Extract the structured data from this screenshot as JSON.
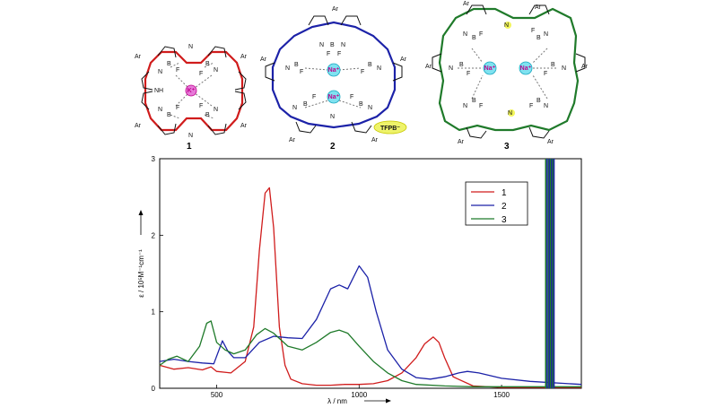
{
  "molecules": [
    {
      "label": "1",
      "color": "#d01c1c",
      "ion": "K⁺",
      "extra": ""
    },
    {
      "label": "2",
      "color": "#1c22a8",
      "ion": "Na⁺",
      "extra": "TFPB⁻"
    },
    {
      "label": "3",
      "color": "#1f7a2a",
      "ion": "Na⁺",
      "extra": ""
    }
  ],
  "atoms": {
    "ar": "Ar",
    "n": "N",
    "b": "B",
    "f": "F",
    "nh": "NH"
  },
  "chart_data": {
    "type": "line",
    "xlabel": "λ / nm",
    "ylabel": "ε / 10⁵M⁻¹cm⁻¹",
    "xlim": [
      300,
      1780
    ],
    "ylim": [
      0,
      3
    ],
    "xticks": [
      500,
      1000,
      1500
    ],
    "yticks": [
      0,
      1,
      2,
      3
    ],
    "legend_position": "top-right",
    "series": [
      {
        "name": "1",
        "color": "#d01c1c",
        "x": [
          300,
          350,
          400,
          450,
          480,
          500,
          550,
          600,
          630,
          650,
          670,
          685,
          700,
          720,
          740,
          760,
          800,
          850,
          900,
          950,
          1000,
          1050,
          1100,
          1150,
          1200,
          1230,
          1260,
          1280,
          1300,
          1330,
          1400,
          1500,
          1780
        ],
        "y": [
          0.3,
          0.25,
          0.27,
          0.24,
          0.28,
          0.22,
          0.2,
          0.35,
          0.8,
          1.8,
          2.55,
          2.62,
          2.1,
          0.8,
          0.3,
          0.12,
          0.06,
          0.04,
          0.04,
          0.05,
          0.05,
          0.06,
          0.1,
          0.2,
          0.4,
          0.58,
          0.67,
          0.6,
          0.4,
          0.15,
          0.03,
          0.01,
          0.01
        ]
      },
      {
        "name": "2",
        "color": "#1c22a8",
        "x": [
          300,
          350,
          400,
          450,
          490,
          520,
          540,
          560,
          600,
          650,
          700,
          750,
          800,
          850,
          900,
          930,
          960,
          1000,
          1030,
          1060,
          1100,
          1150,
          1200,
          1250,
          1300,
          1350,
          1380,
          1420,
          1500,
          1600,
          1780
        ],
        "y": [
          0.35,
          0.38,
          0.35,
          0.33,
          0.32,
          0.62,
          0.48,
          0.4,
          0.4,
          0.6,
          0.68,
          0.66,
          0.65,
          0.9,
          1.3,
          1.35,
          1.3,
          1.6,
          1.45,
          1.0,
          0.5,
          0.25,
          0.14,
          0.12,
          0.15,
          0.2,
          0.22,
          0.2,
          0.13,
          0.09,
          0.05
        ]
      },
      {
        "name": "3",
        "color": "#1f7a2a",
        "x": [
          300,
          330,
          360,
          400,
          440,
          465,
          480,
          500,
          530,
          560,
          600,
          640,
          670,
          700,
          750,
          800,
          850,
          900,
          930,
          960,
          1000,
          1050,
          1100,
          1150,
          1200,
          1300,
          1400,
          1500,
          1780
        ],
        "y": [
          0.3,
          0.38,
          0.42,
          0.35,
          0.55,
          0.85,
          0.88,
          0.6,
          0.5,
          0.45,
          0.5,
          0.7,
          0.78,
          0.72,
          0.55,
          0.5,
          0.6,
          0.73,
          0.76,
          0.72,
          0.55,
          0.35,
          0.2,
          0.1,
          0.05,
          0.03,
          0.02,
          0.02,
          0.02
        ]
      }
    ]
  },
  "legend": {
    "entries": [
      "1",
      "2",
      "3"
    ]
  }
}
